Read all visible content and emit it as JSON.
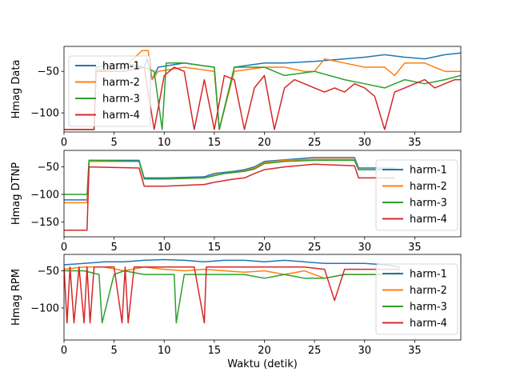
{
  "colors": {
    "harm-1": "#1f77b4",
    "harm-2": "#ff7f0e",
    "harm-3": "#2ca02c",
    "harm-4": "#d62728"
  },
  "chart_data": [
    {
      "type": "line",
      "ylabel": "Hmag Data",
      "xlabel": "",
      "xlim": [
        0,
        39.6
      ],
      "ylim": [
        -123,
        -20
      ],
      "xticks": [
        0,
        5,
        10,
        15,
        20,
        25,
        30,
        35
      ],
      "yticks": [
        -50,
        -100
      ],
      "legend": "top-left",
      "series": [
        {
          "name": "harm-1",
          "x": [
            0,
            3,
            3.2,
            6,
            8,
            8.3,
            8.8,
            9.4,
            12,
            15,
            15.5,
            17,
            20,
            22,
            25,
            28,
            30,
            32,
            34,
            36,
            38,
            39.6
          ],
          "y": [
            -120,
            -120,
            -45,
            -40,
            -45,
            -35,
            -60,
            -45,
            -40,
            -45,
            -120,
            -45,
            -40,
            -40,
            -38,
            -35,
            -33,
            -30,
            -33,
            -35,
            -30,
            -28
          ]
        },
        {
          "name": "harm-2",
          "x": [
            0,
            3,
            3.2,
            6,
            7.8,
            8.4,
            8.8,
            9.4,
            12,
            15,
            15.5,
            17,
            20,
            22,
            24,
            25,
            26,
            28,
            30,
            32,
            33,
            34,
            36,
            38,
            39.6
          ],
          "y": [
            -120,
            -120,
            -48,
            -45,
            -25,
            -25,
            -60,
            -50,
            -45,
            -50,
            -120,
            -50,
            -45,
            -45,
            -50,
            -50,
            -35,
            -40,
            -45,
            -45,
            -55,
            -40,
            -40,
            -50,
            -50
          ]
        },
        {
          "name": "harm-3",
          "x": [
            0,
            3,
            3.2,
            6,
            8,
            9,
            9.8,
            10.2,
            12,
            15,
            15.5,
            17,
            20,
            22,
            25,
            28,
            30,
            32,
            34,
            36,
            38,
            39.6
          ],
          "y": [
            -120,
            -120,
            -50,
            -45,
            -45,
            -50,
            -120,
            -40,
            -40,
            -45,
            -120,
            -45,
            -45,
            -55,
            -50,
            -60,
            -65,
            -70,
            -60,
            -65,
            -60,
            -55
          ]
        },
        {
          "name": "harm-4",
          "x": [
            0,
            3,
            3.2,
            6,
            8,
            9,
            10,
            11,
            12,
            13,
            14,
            15,
            16,
            17,
            18,
            19,
            20,
            21,
            22,
            23,
            24,
            25,
            26,
            27,
            28,
            29,
            30,
            31,
            32,
            33,
            34,
            35,
            36,
            37,
            38,
            39,
            39.6
          ],
          "y": [
            -120,
            -120,
            -50,
            -50,
            -45,
            -120,
            -55,
            -45,
            -50,
            -120,
            -60,
            -120,
            -55,
            -60,
            -120,
            -70,
            -55,
            -120,
            -70,
            -60,
            -65,
            -70,
            -75,
            -70,
            -75,
            -65,
            -70,
            -80,
            -120,
            -75,
            -70,
            -65,
            -60,
            -70,
            -65,
            -60,
            -60
          ]
        }
      ]
    },
    {
      "type": "line",
      "ylabel": "Hmag DTNP",
      "xlabel": "",
      "xlim": [
        0,
        39.6
      ],
      "ylim": [
        -177,
        -20
      ],
      "xticks": [
        0,
        5,
        10,
        15,
        20,
        25,
        30,
        35
      ],
      "yticks": [
        -50,
        -100,
        -150
      ],
      "legend": "right",
      "series": [
        {
          "name": "harm-1",
          "x": [
            0,
            2.3,
            2.5,
            7.5,
            8,
            10,
            14,
            15,
            16,
            17,
            18,
            19,
            20,
            22,
            25,
            29,
            29.4,
            33
          ],
          "y": [
            -110,
            -110,
            -38,
            -38,
            -70,
            -70,
            -68,
            -62,
            -60,
            -58,
            -55,
            -50,
            -40,
            -37,
            -33,
            -33,
            -52,
            -52
          ]
        },
        {
          "name": "harm-2",
          "x": [
            0,
            2.3,
            2.5,
            7.5,
            8,
            10,
            14,
            15,
            16,
            17,
            18,
            19,
            20,
            22,
            25,
            29,
            29.4,
            33.5
          ],
          "y": [
            -115,
            -115,
            -40,
            -40,
            -72,
            -72,
            -70,
            -65,
            -62,
            -60,
            -57,
            -52,
            -42,
            -38,
            -36,
            -36,
            -55,
            -55
          ]
        },
        {
          "name": "harm-3",
          "x": [
            0,
            2.3,
            2.5,
            7.5,
            8,
            10,
            14,
            15,
            16,
            17,
            18,
            19,
            20,
            22,
            25,
            29,
            29.4,
            33
          ],
          "y": [
            -100,
            -100,
            -38,
            -40,
            -72,
            -72,
            -70,
            -66,
            -62,
            -60,
            -58,
            -54,
            -44,
            -40,
            -38,
            -38,
            -55,
            -55
          ]
        },
        {
          "name": "harm-4",
          "x": [
            0,
            2.3,
            2.5,
            7.5,
            8,
            10,
            14,
            15,
            16,
            17,
            18,
            19,
            20,
            22,
            25,
            29,
            29.4,
            33
          ],
          "y": [
            -165,
            -165,
            -50,
            -52,
            -85,
            -85,
            -82,
            -78,
            -75,
            -72,
            -70,
            -62,
            -55,
            -50,
            -45,
            -48,
            -70,
            -70
          ]
        }
      ]
    },
    {
      "type": "line",
      "ylabel": "Hmag RPM",
      "xlabel": "Waktu (detik)",
      "xlim": [
        0,
        39.6
      ],
      "ylim": [
        -143,
        -28
      ],
      "xticks": [
        0,
        5,
        10,
        15,
        20,
        25,
        30,
        35
      ],
      "yticks": [
        -50,
        -100
      ],
      "legend": "right",
      "series": [
        {
          "name": "harm-1",
          "x": [
            0,
            2,
            4,
            6,
            8,
            10,
            12,
            14,
            16,
            18,
            20,
            22,
            24,
            26,
            28,
            30,
            32,
            33.5
          ],
          "y": [
            -42,
            -40,
            -38,
            -38,
            -36,
            -35,
            -36,
            -38,
            -36,
            -36,
            -38,
            -36,
            -38,
            -40,
            -40,
            -40,
            -42,
            -45
          ]
        },
        {
          "name": "harm-2",
          "x": [
            0,
            2,
            4,
            6,
            8,
            10,
            12,
            14,
            16,
            18,
            20,
            22,
            24,
            26,
            28,
            30,
            32,
            33.5
          ],
          "y": [
            -48,
            -45,
            -45,
            -50,
            -45,
            -48,
            -50,
            -48,
            -50,
            -52,
            -50,
            -55,
            -50,
            -60,
            -55,
            -55,
            -55,
            -52
          ]
        },
        {
          "name": "harm-3",
          "x": [
            0,
            2,
            3.5,
            3.8,
            5,
            6,
            8,
            10,
            11,
            11.2,
            12,
            14,
            16,
            18,
            20,
            22,
            24,
            26,
            28,
            30,
            32,
            33.5
          ],
          "y": [
            -50,
            -50,
            -55,
            -120,
            -55,
            -50,
            -55,
            -55,
            -55,
            -120,
            -55,
            -55,
            -55,
            -55,
            -60,
            -55,
            -60,
            -60,
            -55,
            -55,
            -55,
            -55
          ]
        },
        {
          "name": "harm-4",
          "x": [
            0,
            0.3,
            0.6,
            1,
            1.5,
            2,
            2.3,
            2.6,
            3,
            4,
            5,
            5.8,
            6.1,
            6.4,
            7,
            8,
            9,
            10,
            12,
            13,
            14,
            14.2,
            15,
            16,
            18,
            20,
            22,
            24,
            26,
            27,
            28,
            30,
            32,
            33.5
          ],
          "y": [
            -45,
            -120,
            -45,
            -120,
            -45,
            -120,
            -45,
            -120,
            -45,
            -45,
            -45,
            -120,
            -45,
            -120,
            -45,
            -45,
            -45,
            -45,
            -45,
            -45,
            -120,
            -45,
            -45,
            -45,
            -45,
            -45,
            -45,
            -45,
            -48,
            -90,
            -48,
            -48,
            -48,
            -48
          ]
        }
      ]
    }
  ]
}
